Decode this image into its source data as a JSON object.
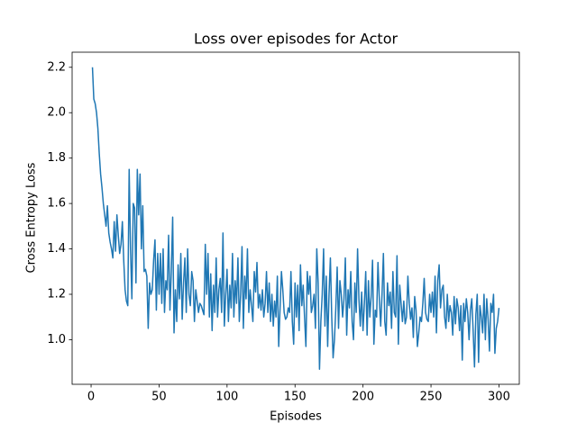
{
  "chart_data": {
    "type": "line",
    "title": "Loss over episodes for Actor",
    "xlabel": "Episodes",
    "ylabel": "Cross Entropy Loss",
    "color": "#1f77b4",
    "xlim": [
      -13.95,
      314.95
    ],
    "ylim": [
      0.8035,
      2.2665
    ],
    "xticks": [
      0,
      50,
      100,
      150,
      200,
      250,
      300
    ],
    "yticks": [
      {
        "value": 1.0,
        "label": "1.0"
      },
      {
        "value": 1.2,
        "label": "1.2"
      },
      {
        "value": 1.4,
        "label": "1.4"
      },
      {
        "value": 1.6,
        "label": "1.6"
      },
      {
        "value": 1.8,
        "label": "1.8"
      },
      {
        "value": 2.0,
        "label": "2.0"
      },
      {
        "value": 2.2,
        "label": "2.2"
      }
    ],
    "x": [
      1,
      2,
      3,
      4,
      5,
      6,
      7,
      8,
      9,
      10,
      11,
      12,
      13,
      14,
      15,
      16,
      17,
      18,
      19,
      20,
      21,
      22,
      23,
      24,
      25,
      26,
      27,
      28,
      29,
      30,
      31,
      32,
      33,
      34,
      35,
      36,
      37,
      38,
      39,
      40,
      41,
      42,
      43,
      44,
      45,
      46,
      47,
      48,
      49,
      50,
      51,
      52,
      53,
      54,
      55,
      56,
      57,
      58,
      59,
      60,
      61,
      62,
      63,
      64,
      65,
      66,
      67,
      68,
      69,
      70,
      71,
      72,
      73,
      74,
      75,
      76,
      77,
      78,
      79,
      80,
      81,
      82,
      83,
      84,
      85,
      86,
      87,
      88,
      89,
      90,
      91,
      92,
      93,
      94,
      95,
      96,
      97,
      98,
      99,
      100,
      101,
      102,
      103,
      104,
      105,
      106,
      107,
      108,
      109,
      110,
      111,
      112,
      113,
      114,
      115,
      116,
      117,
      118,
      119,
      120,
      121,
      122,
      123,
      124,
      125,
      126,
      127,
      128,
      129,
      130,
      131,
      132,
      133,
      134,
      135,
      136,
      137,
      138,
      139,
      140,
      141,
      142,
      143,
      144,
      145,
      146,
      147,
      148,
      149,
      150,
      151,
      152,
      153,
      154,
      155,
      156,
      157,
      158,
      159,
      160,
      161,
      162,
      163,
      164,
      165,
      166,
      167,
      168,
      169,
      170,
      171,
      172,
      173,
      174,
      175,
      176,
      177,
      178,
      179,
      180,
      181,
      182,
      183,
      184,
      185,
      186,
      187,
      188,
      189,
      190,
      191,
      192,
      193,
      194,
      195,
      196,
      197,
      198,
      199,
      200,
      201,
      202,
      203,
      204,
      205,
      206,
      207,
      208,
      209,
      210,
      211,
      212,
      213,
      214,
      215,
      216,
      217,
      218,
      219,
      220,
      221,
      222,
      223,
      224,
      225,
      226,
      227,
      228,
      229,
      230,
      231,
      232,
      233,
      234,
      235,
      236,
      237,
      238,
      239,
      240,
      241,
      242,
      243,
      244,
      245,
      246,
      247,
      248,
      249,
      250,
      251,
      252,
      253,
      254,
      255,
      256,
      257,
      258,
      259,
      260,
      261,
      262,
      263,
      264,
      265,
      266,
      267,
      268,
      269,
      270,
      271,
      272,
      273,
      274,
      275,
      276,
      277,
      278,
      279,
      280,
      281,
      282,
      283,
      284,
      285,
      286,
      287,
      288,
      289,
      290,
      291,
      292,
      293,
      294,
      295,
      296,
      297,
      298,
      299,
      300
    ],
    "values": [
      2.2,
      2.06,
      2.04,
      2.0,
      1.93,
      1.82,
      1.73,
      1.67,
      1.6,
      1.55,
      1.5,
      1.59,
      1.47,
      1.43,
      1.4,
      1.36,
      1.52,
      1.39,
      1.55,
      1.46,
      1.38,
      1.42,
      1.52,
      1.35,
      1.22,
      1.17,
      1.15,
      1.75,
      1.4,
      1.18,
      1.6,
      1.58,
      1.25,
      1.75,
      1.55,
      1.73,
      1.4,
      1.59,
      1.3,
      1.31,
      1.28,
      1.05,
      1.25,
      1.2,
      1.22,
      1.35,
      1.44,
      1.13,
      1.38,
      1.2,
      1.38,
      1.16,
      1.4,
      1.12,
      1.26,
      1.22,
      1.46,
      1.13,
      1.3,
      1.54,
      1.03,
      1.22,
      1.08,
      1.33,
      1.18,
      1.38,
      1.09,
      1.25,
      1.36,
      1.12,
      1.4,
      1.2,
      1.15,
      1.3,
      1.26,
      1.08,
      1.22,
      1.17,
      1.12,
      1.16,
      1.15,
      1.13,
      1.11,
      1.42,
      1.2,
      1.38,
      1.1,
      1.29,
      1.04,
      1.24,
      1.12,
      1.36,
      1.1,
      1.22,
      1.27,
      1.12,
      1.47,
      1.06,
      1.2,
      1.31,
      1.08,
      1.24,
      1.14,
      1.38,
      1.1,
      1.26,
      1.16,
      1.36,
      1.08,
      1.2,
      1.41,
      1.05,
      1.28,
      1.18,
      1.4,
      1.12,
      1.22,
      1.15,
      1.08,
      1.3,
      1.21,
      1.34,
      1.14,
      1.2,
      1.13,
      1.22,
      1.1,
      1.16,
      1.3,
      1.12,
      1.25,
      1.08,
      1.2,
      1.06,
      1.17,
      1.1,
      1.28,
      0.97,
      1.14,
      1.3,
      1.22,
      1.12,
      1.09,
      1.1,
      1.14,
      1.12,
      1.3,
      1.08,
      0.98,
      1.25,
      1.1,
      1.24,
      1.04,
      1.33,
      1.15,
      1.24,
      1.1,
      0.97,
      1.3,
      1.2,
      1.28,
      1.12,
      1.15,
      1.2,
      1.05,
      1.4,
      1.25,
      0.87,
      1.08,
      1.2,
      1.4,
      1.06,
      1.28,
      0.97,
      1.2,
      1.36,
      1.1,
      0.92,
      1.0,
      1.14,
      1.32,
      1.05,
      1.26,
      1.2,
      1.1,
      1.18,
      1.36,
      1.02,
      1.22,
      1.14,
      1.3,
      1.08,
      1.0,
      1.25,
      1.12,
      1.4,
      1.18,
      1.06,
      1.21,
      1.04,
      1.16,
      1.3,
      1.02,
      1.26,
      1.1,
      1.19,
      1.35,
      0.98,
      1.13,
      1.1,
      1.34,
      1.18,
      1.06,
      1.2,
      1.38,
      1.08,
      1.02,
      1.25,
      1.15,
      1.21,
      1.05,
      1.3,
      1.12,
      1.1,
      1.37,
      0.98,
      1.24,
      1.16,
      1.08,
      1.17,
      1.07,
      1.1,
      1.28,
      1.16,
      1.09,
      1.14,
      1.01,
      1.19,
      1.13,
      0.97,
      1.03,
      1.1,
      1.08,
      1.16,
      1.27,
      1.12,
      1.09,
      1.08,
      1.2,
      1.12,
      1.21,
      1.1,
      1.28,
      1.03,
      1.26,
      1.33,
      1.14,
      1.22,
      1.24,
      1.1,
      1.05,
      1.2,
      1.08,
      1.15,
      1.12,
      1.02,
      1.19,
      1.07,
      1.18,
      1.14,
      1.04,
      1.15,
      0.91,
      1.16,
      1.08,
      1.18,
      1.12,
      1.0,
      1.13,
      1.18,
      1.04,
      0.88,
      1.11,
      1.2,
      0.9,
      1.15,
      1.1,
      1.03,
      1.2,
      1.0,
      1.18,
      1.09,
      0.95,
      1.16,
      1.12,
      1.2,
      0.94,
      1.05,
      1.08,
      1.14
    ]
  }
}
